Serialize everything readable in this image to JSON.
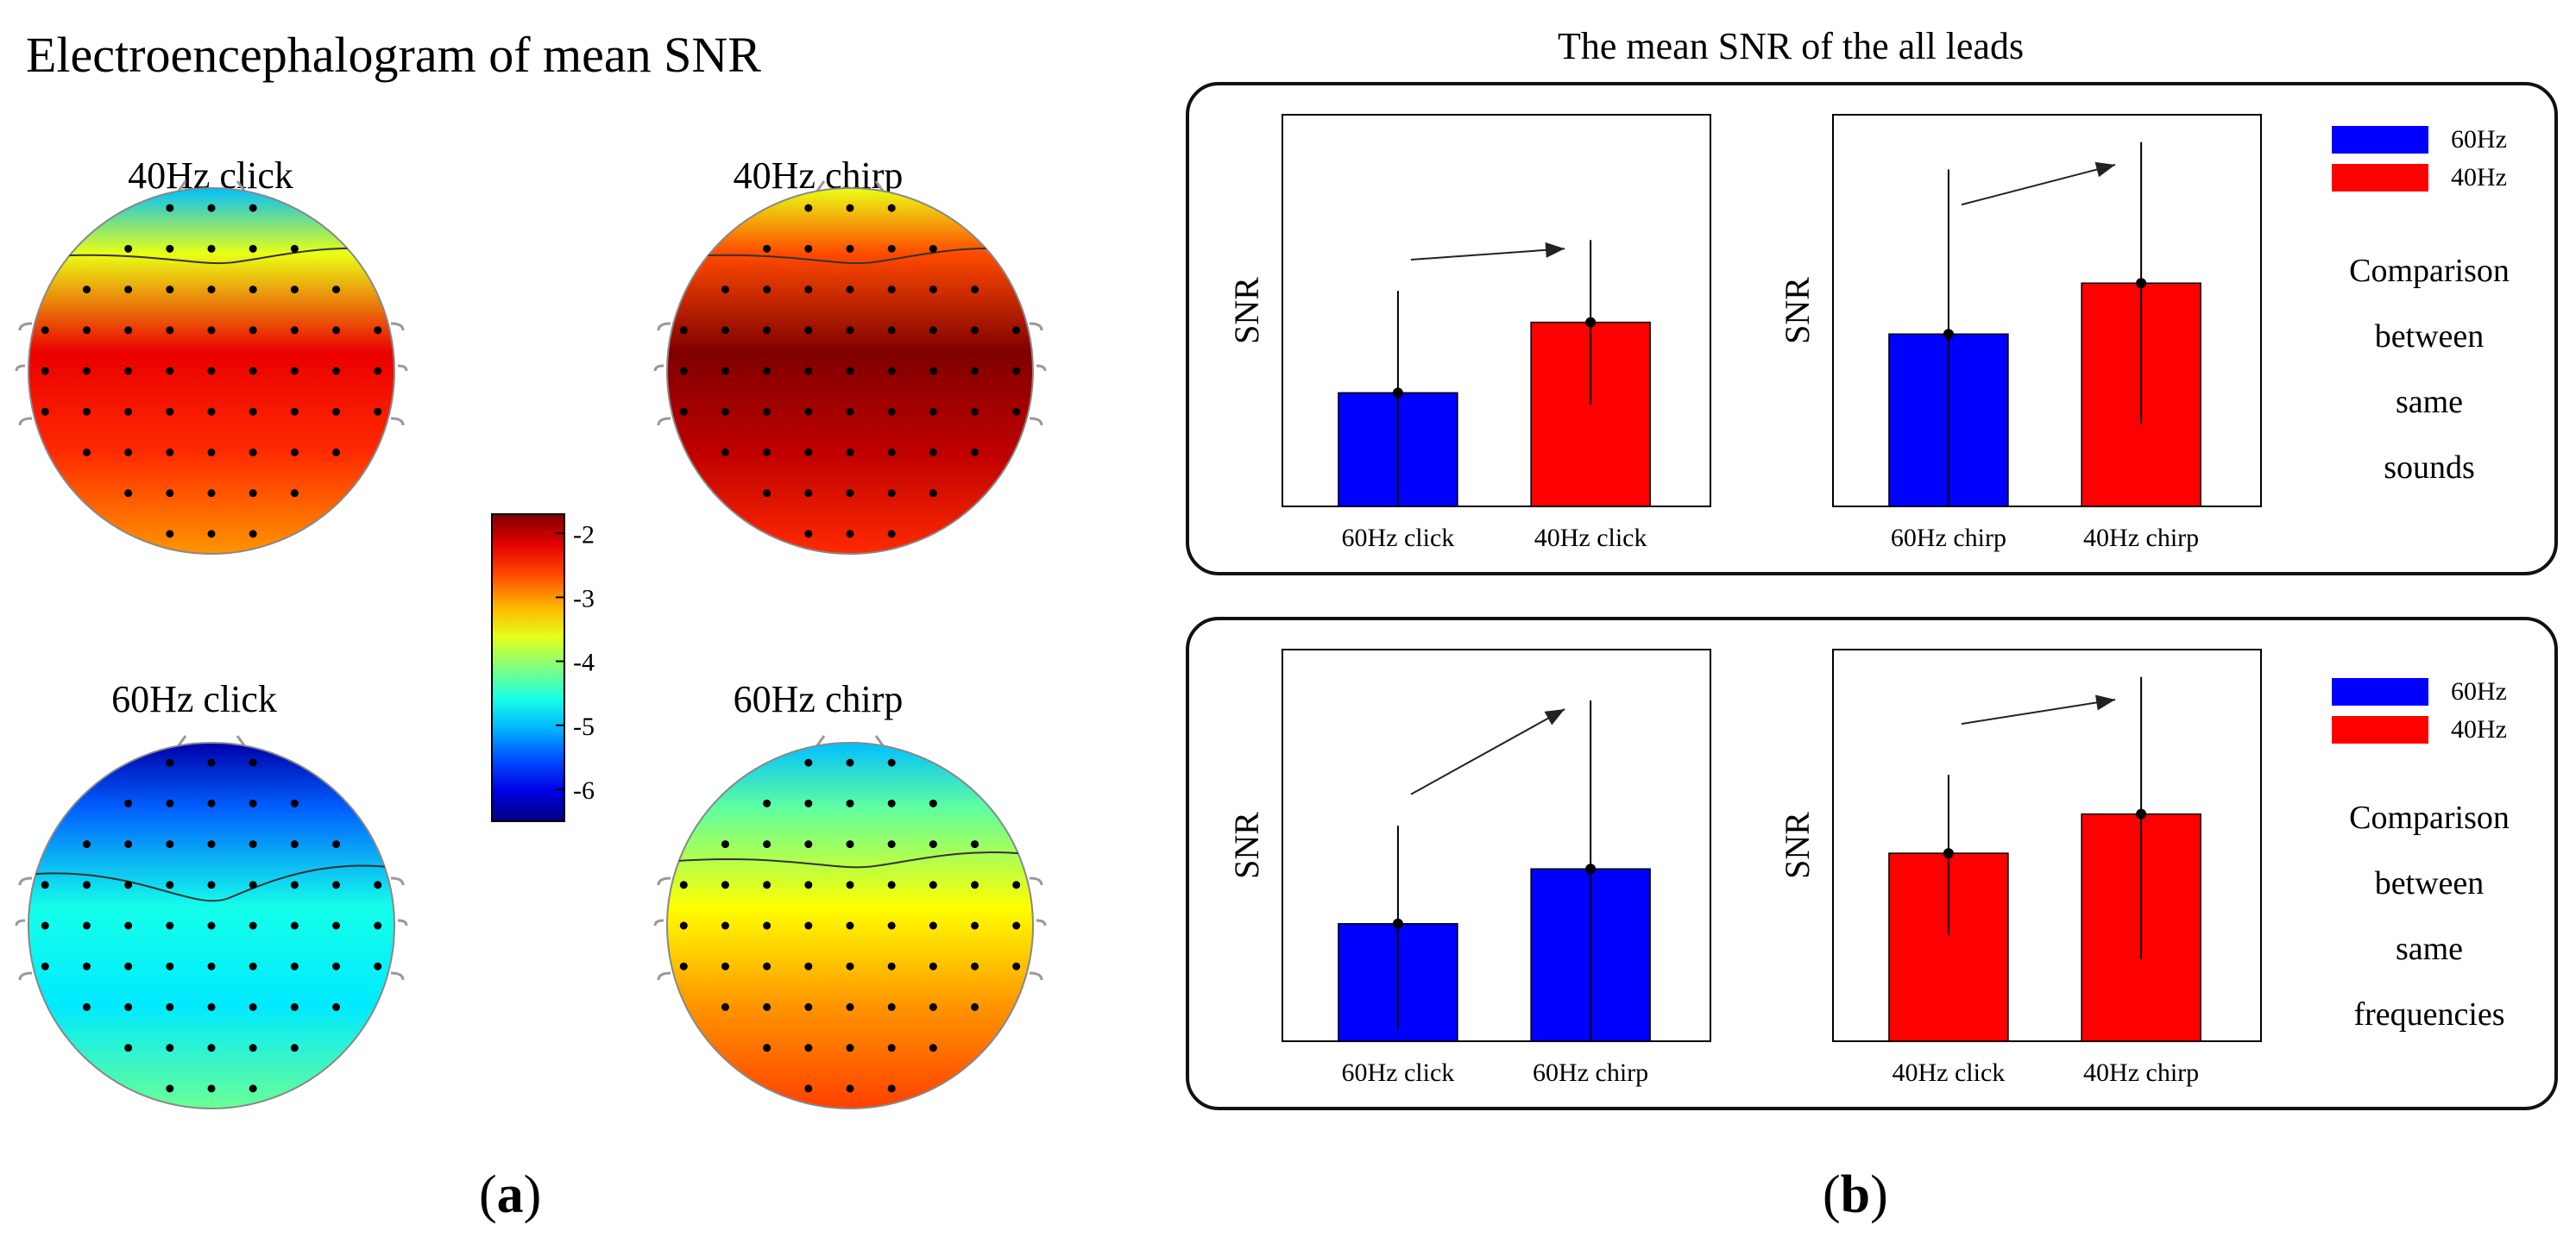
{
  "panel_a": {
    "title": "Electroencephalogram of mean SNR",
    "label": "a",
    "heads": [
      {
        "label": "40Hz click"
      },
      {
        "label": "40Hz chirp"
      },
      {
        "label": "60Hz click"
      },
      {
        "label": "60Hz chirp"
      }
    ]
  },
  "panel_b": {
    "title": "The mean SNR of the all leads",
    "label": "b"
  },
  "chart_data": [
    {
      "type": "heatmap",
      "title": "40Hz click",
      "colorbar": {
        "min": -6.5,
        "max": -1.7,
        "ticks": [
          -2,
          -3,
          -4,
          -5,
          -6
        ],
        "tick_labels": [
          "-2",
          "-3",
          "-4",
          "-5",
          "-6"
        ],
        "colormap": "jet"
      },
      "regions": {
        "frontal": -5.0,
        "central": -2.2,
        "parietal": -2.5,
        "occipital": -3.0
      }
    },
    {
      "type": "heatmap",
      "title": "40Hz chirp",
      "regions": {
        "frontal": -3.6,
        "central": -1.7,
        "parietal": -2.0,
        "occipital": -2.5
      }
    },
    {
      "type": "heatmap",
      "title": "60Hz click",
      "regions": {
        "frontal": -6.3,
        "central": -4.6,
        "parietal": -4.8,
        "occipital": -4.2
      }
    },
    {
      "type": "heatmap",
      "title": "60Hz chirp",
      "regions": {
        "frontal": -5.0,
        "central": -3.5,
        "parietal": -3.0,
        "occipital": -2.6
      }
    },
    {
      "type": "bar",
      "group": "Comparison between same sounds",
      "ylabel": "SNR",
      "ylim": [
        0,
        10
      ],
      "categories": [
        "60Hz click",
        "40Hz click"
      ],
      "values": [
        2.9,
        4.7
      ],
      "error_low": [
        0.0,
        2.6
      ],
      "error_high": [
        5.5,
        6.8
      ],
      "colors": [
        "#0000ff",
        "#ff0000"
      ]
    },
    {
      "type": "bar",
      "group": "Comparison between same sounds",
      "ylabel": "SNR",
      "ylim": [
        0,
        10
      ],
      "categories": [
        "60Hz chirp",
        "40Hz chirp"
      ],
      "values": [
        4.4,
        5.7
      ],
      "error_low": [
        0.0,
        2.1
      ],
      "error_high": [
        8.6,
        9.3
      ],
      "colors": [
        "#0000ff",
        "#ff0000"
      ]
    },
    {
      "type": "bar",
      "group": "Comparison between same frequencies",
      "ylabel": "SNR",
      "ylim": [
        0,
        10
      ],
      "categories": [
        "60Hz click",
        "60Hz chirp"
      ],
      "values": [
        3.0,
        4.4
      ],
      "error_low": [
        0.3,
        0.0
      ],
      "error_high": [
        5.5,
        8.7
      ],
      "colors": [
        "#0000ff",
        "#0000ff"
      ]
    },
    {
      "type": "bar",
      "group": "Comparison between same frequencies",
      "ylabel": "SNR",
      "ylim": [
        0,
        10
      ],
      "categories": [
        "40Hz click",
        "40Hz chirp"
      ],
      "values": [
        4.8,
        5.8
      ],
      "error_low": [
        2.7,
        2.1
      ],
      "error_high": [
        6.8,
        9.3
      ],
      "colors": [
        "#ff0000",
        "#ff0000"
      ]
    }
  ],
  "legend": [
    {
      "label": "60Hz",
      "color": "#0000ff"
    },
    {
      "label": "40Hz",
      "color": "#ff0000"
    }
  ],
  "comparisons": [
    {
      "lines": [
        "Comparison",
        "between",
        "same",
        "sounds"
      ]
    },
    {
      "lines": [
        "Comparison",
        "between",
        "same",
        "frequencies"
      ]
    }
  ]
}
